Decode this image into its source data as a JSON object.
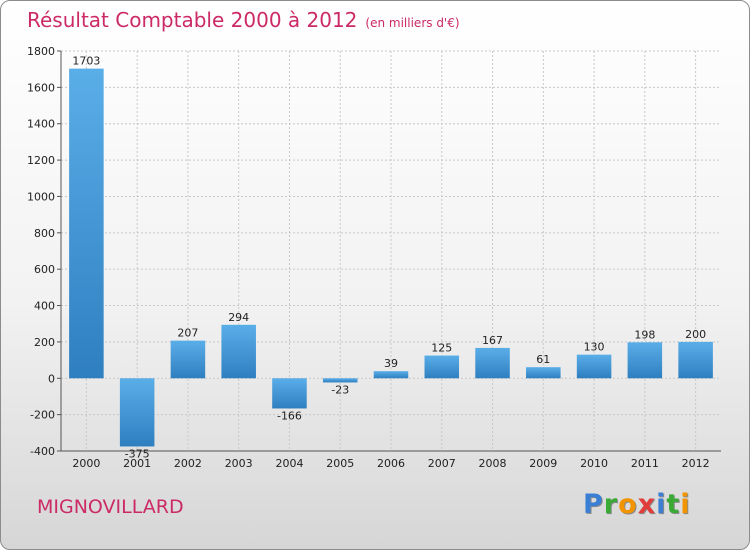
{
  "header": {
    "title": "Résultat Comptable 2000 à 2012",
    "subtitle": "(en milliers d'€)"
  },
  "footer": {
    "city": "MIGNOVILLARD",
    "logo": [
      "P",
      "r",
      "o",
      "x",
      "i",
      "t",
      "i"
    ],
    "logo_colors": [
      "#3b7fd4",
      "#3aaa35",
      "#f29400",
      "#e23b3b",
      "#3b7fd4",
      "#3aaa35",
      "#f29400"
    ]
  },
  "chart_data": {
    "type": "bar",
    "title": "Résultat Comptable 2000 à 2012",
    "subtitle": "(en milliers d'€)",
    "categories": [
      "2000",
      "2001",
      "2002",
      "2003",
      "2004",
      "2005",
      "2006",
      "2007",
      "2008",
      "2009",
      "2010",
      "2011",
      "2012"
    ],
    "values": [
      1703,
      -375,
      207,
      294,
      -166,
      -23,
      39,
      125,
      167,
      61,
      130,
      198,
      200
    ],
    "ylim": [
      -400,
      1800
    ],
    "yticks": [
      -400,
      -200,
      0,
      200,
      400,
      600,
      800,
      1000,
      1200,
      1400,
      1600,
      1800
    ],
    "grid": true,
    "bar_color_light": "#5aaee8",
    "bar_color_dark": "#2e7fc0"
  }
}
